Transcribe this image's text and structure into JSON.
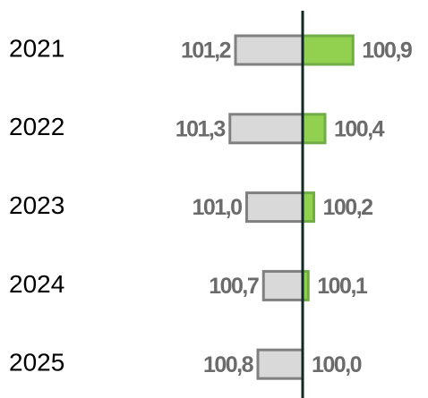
{
  "chart_data": {
    "type": "diverging-bar",
    "categories": [
      "2021",
      "2022",
      "2023",
      "2024",
      "2025"
    ],
    "xlim": [
      100,
      102
    ],
    "series": [
      {
        "color": "#d9d9d9",
        "stroke": "#808080",
        "side": "left",
        "values": [
          101.2,
          101.3,
          101.0,
          100.7,
          100.8
        ],
        "value_labels": [
          "101,2",
          "101,3",
          "101,0",
          "100,7",
          "100,8"
        ]
      },
      {
        "color": "#92d050",
        "stroke": "#70ad47",
        "side": "right",
        "values": [
          100.9,
          100.4,
          100.2,
          100.1,
          100.0
        ],
        "value_labels": [
          "100,9",
          "100,4",
          "100,2",
          "100,1",
          "100,0"
        ]
      }
    ]
  }
}
